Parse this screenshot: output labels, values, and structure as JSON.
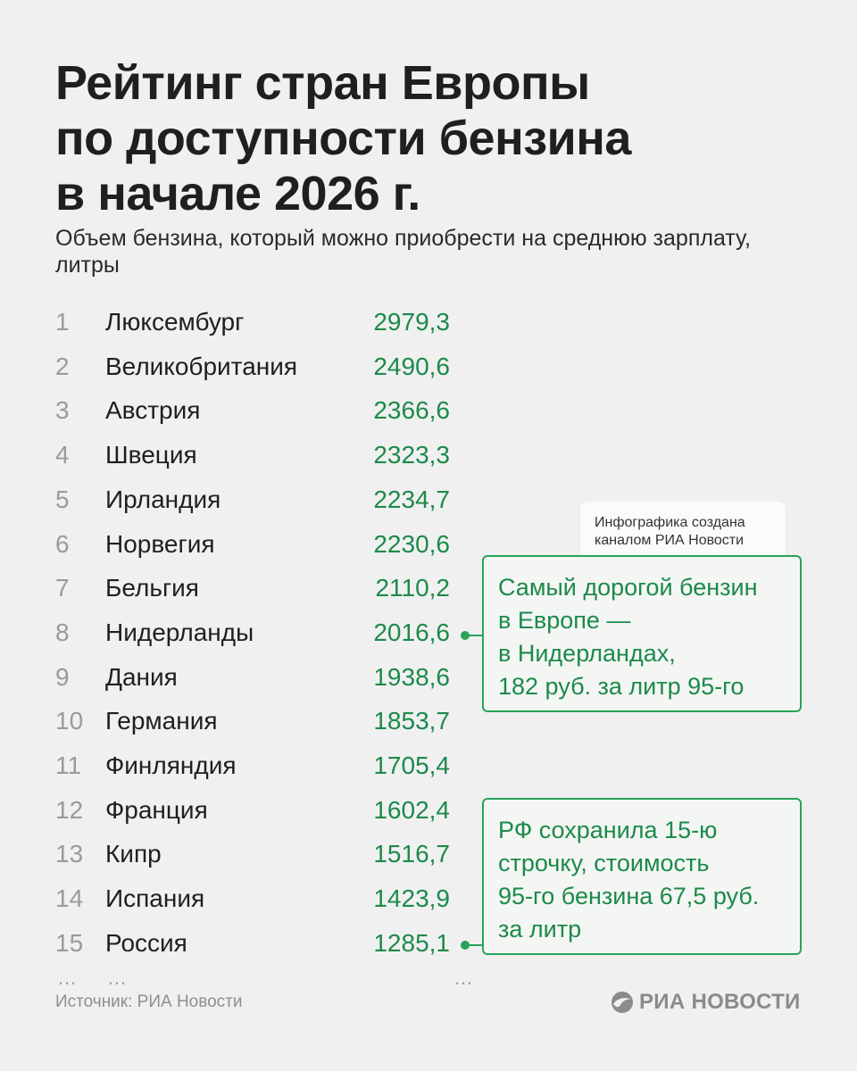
{
  "title_lines": [
    "Рейтинг стран Европы",
    "по доступности бензина",
    "в начале 2026 г."
  ],
  "subtitle_lines": [
    "Объем бензина, который можно приобрести на среднюю зарплату,",
    "литры"
  ],
  "chart_data": {
    "type": "table",
    "columns": [
      "rank",
      "country",
      "liters"
    ],
    "rows": [
      {
        "rank": "1",
        "country": "Люксембург",
        "value": "2979,3"
      },
      {
        "rank": "2",
        "country": "Великобритания",
        "value": "2490,6"
      },
      {
        "rank": "3",
        "country": "Австрия",
        "value": "2366,6"
      },
      {
        "rank": "4",
        "country": "Швеция",
        "value": "2323,3"
      },
      {
        "rank": "5",
        "country": "Ирландия",
        "value": "2234,7"
      },
      {
        "rank": "6",
        "country": "Норвегия",
        "value": "2230,6"
      },
      {
        "rank": "7",
        "country": "Бельгия",
        "value": "2110,2"
      },
      {
        "rank": "8",
        "country": "Нидерланды",
        "value": "2016,6"
      },
      {
        "rank": "9",
        "country": "Дания",
        "value": "1938,6"
      },
      {
        "rank": "10",
        "country": "Германия",
        "value": "1853,7"
      },
      {
        "rank": "11",
        "country": "Финляндия",
        "value": "1705,4"
      },
      {
        "rank": "12",
        "country": "Франция",
        "value": "1602,4"
      },
      {
        "rank": "13",
        "country": "Кипр",
        "value": "1516,7"
      },
      {
        "rank": "14",
        "country": "Испания",
        "value": "1423,9"
      },
      {
        "rank": "15",
        "country": "Россия",
        "value": "1285,1"
      }
    ],
    "annotations": [
      {
        "target_rank": "8",
        "lines": [
          "Самый дорогой бензин",
          "в Европе —",
          "в Нидерландах,",
          "182 руб. за литр 95-го"
        ]
      },
      {
        "target_rank": "15",
        "lines": [
          "РФ сохранила 15-ю",
          "строчку, стоимость",
          "95-го бензина 67,5 руб.",
          "за литр"
        ]
      }
    ]
  },
  "ellipsis": "…",
  "credit_lines": [
    "Инфографика создана",
    "каналом РИА Новости"
  ],
  "source": "Источник: РИА Новости",
  "logo_text": "РИА НОВОСТИ",
  "colors": {
    "accent": "#1c8a4a",
    "border": "#29a35a",
    "background": "#f0f0f1"
  }
}
